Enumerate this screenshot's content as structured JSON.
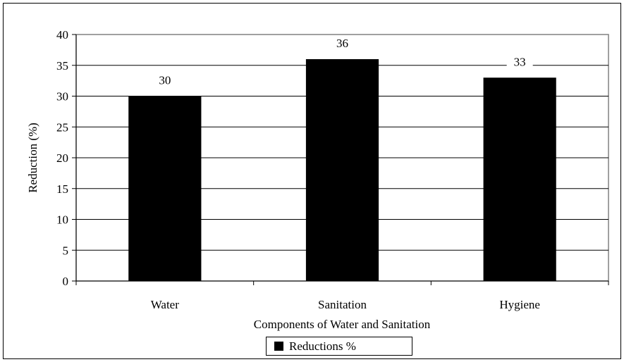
{
  "chart_data": {
    "type": "bar",
    "categories": [
      "Water",
      "Sanitation",
      "Hygiene"
    ],
    "series": [
      {
        "name": "Reductions %",
        "values": [
          30,
          36,
          33
        ],
        "color": "#000000"
      }
    ],
    "data_labels": [
      "30",
      "36",
      "33"
    ],
    "xlabel": "Components of Water and Sanitation",
    "ylabel": "Reduction (%)",
    "ylim": [
      0,
      40
    ],
    "yticks": [
      "0",
      "5",
      "10",
      "15",
      "20",
      "25",
      "30",
      "35",
      "40"
    ],
    "grid": true,
    "legend": "bottom"
  }
}
